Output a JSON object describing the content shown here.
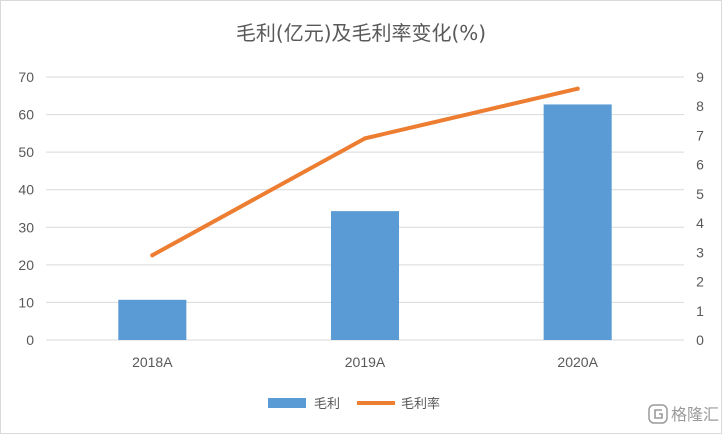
{
  "chart_data": {
    "type": "bar",
    "title": "毛利(亿元)及毛利率变化(%)",
    "categories": [
      "2018A",
      "2019A",
      "2020A"
    ],
    "series": [
      {
        "name": "毛利",
        "type": "bar",
        "axis": "left",
        "values": [
          10.7,
          34.3,
          62.7
        ]
      },
      {
        "name": "毛利率",
        "type": "line",
        "axis": "right",
        "values": [
          2.9,
          6.9,
          8.6
        ]
      }
    ],
    "y_left": {
      "min": 0,
      "max": 70,
      "ticks": [
        "0",
        "10",
        "20",
        "30",
        "40",
        "50",
        "60",
        "70"
      ]
    },
    "y_right": {
      "min": 0,
      "max": 9,
      "ticks": [
        "0",
        "1",
        "2",
        "3",
        "4",
        "5",
        "6",
        "7",
        "8",
        "9"
      ]
    },
    "grid": true,
    "legend_position": "bottom",
    "colors": {
      "bar": "#5b9bd5",
      "line": "#ed7d31"
    }
  },
  "watermark": {
    "icon": "gelonghui-logo-icon",
    "text": "格隆汇"
  }
}
